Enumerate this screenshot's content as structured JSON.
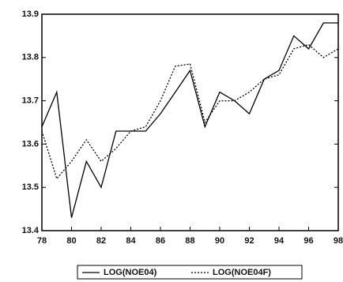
{
  "chart_data": {
    "type": "line",
    "x": [
      78,
      79,
      80,
      81,
      82,
      83,
      84,
      85,
      86,
      87,
      88,
      89,
      90,
      91,
      92,
      93,
      94,
      95,
      96,
      97,
      98
    ],
    "series": [
      {
        "name": "LOG(NOE04)",
        "color": "#000000",
        "style": "solid",
        "values": [
          13.64,
          13.72,
          13.43,
          13.56,
          13.5,
          13.63,
          13.63,
          13.63,
          13.67,
          13.72,
          13.77,
          13.64,
          13.72,
          13.7,
          13.67,
          13.75,
          13.77,
          13.85,
          13.82,
          13.88,
          13.88
        ]
      },
      {
        "name": "LOG(NOE04F)",
        "color": "#000000",
        "style": "dotted",
        "values": [
          13.63,
          13.52,
          13.56,
          13.61,
          13.56,
          13.59,
          13.63,
          13.64,
          13.7,
          13.78,
          13.785,
          13.65,
          13.7,
          13.7,
          13.72,
          13.75,
          13.76,
          13.82,
          13.83,
          13.8,
          13.82
        ]
      }
    ],
    "xlim": [
      78,
      98
    ],
    "xticks": [
      78,
      80,
      82,
      84,
      86,
      88,
      90,
      92,
      94,
      96,
      98
    ],
    "ylim": [
      13.4,
      13.9
    ],
    "yticks": [
      13.4,
      13.5,
      13.6,
      13.7,
      13.8,
      13.9
    ],
    "grid": false,
    "legend": "bottom"
  }
}
